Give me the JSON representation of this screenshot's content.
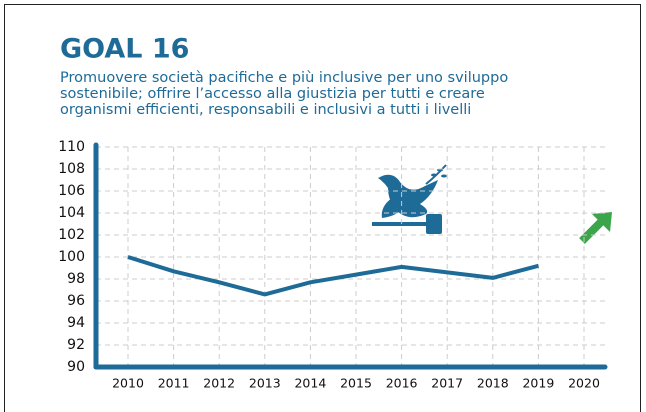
{
  "chart_data": {
    "type": "line",
    "title": "GOAL 16",
    "subtitle": [
      "Promuovere società pacifiche e più inclusive per uno sviluppo",
      "sostenibile; offrire l’accesso alla giustizia per tutti e creare",
      "organismi efficienti, responsabili e inclusivi a tutti i livelli"
    ],
    "categories": [
      "2010",
      "2011",
      "2012",
      "2013",
      "2014",
      "2015",
      "2016",
      "2017",
      "2018",
      "2019",
      "2020"
    ],
    "series": [
      {
        "name": "Goal 16",
        "color": "#1e6b98",
        "values": [
          100,
          98.7,
          97.7,
          96.6,
          97.7,
          98.4,
          99.1,
          98.6,
          98.1,
          99.2,
          null
        ]
      }
    ],
    "ylim": [
      90,
      110
    ],
    "yticks": [
      90,
      92,
      94,
      96,
      98,
      100,
      102,
      104,
      106,
      108,
      110
    ],
    "grid": true
  }
}
